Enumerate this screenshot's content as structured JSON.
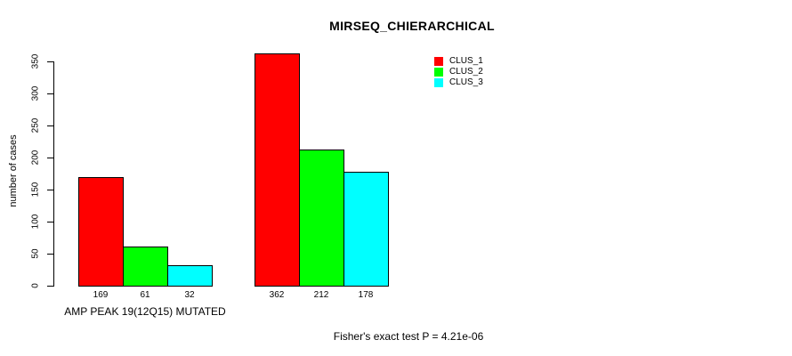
{
  "title": "MIRSEQ_CHIERARCHICAL",
  "chart_data": {
    "type": "bar",
    "title": "MIRSEQ_CHIERARCHICAL",
    "ylabel": "number of cases",
    "xlabel": "",
    "ylim": [
      0,
      350
    ],
    "yticks": [
      0,
      50,
      100,
      150,
      200,
      250,
      300,
      350
    ],
    "grid": false,
    "legend_position": "top-right",
    "bar_value_labels_shown": true,
    "categories": [
      "AMP PEAK 19(12Q15) MUTATED",
      ""
    ],
    "series": [
      {
        "name": "CLUS_1",
        "color": "#FF0000",
        "values": [
          169,
          362
        ]
      },
      {
        "name": "CLUS_2",
        "color": "#00FF00",
        "values": [
          61,
          212
        ]
      },
      {
        "name": "CLUS_3",
        "color": "#00FFFF",
        "values": [
          32,
          178
        ]
      }
    ],
    "annotation": "Fisher's exact test P = 4.21e-06"
  },
  "colors": {
    "axis": "#000000",
    "text": "#000000",
    "background": "#FFFFFF"
  }
}
